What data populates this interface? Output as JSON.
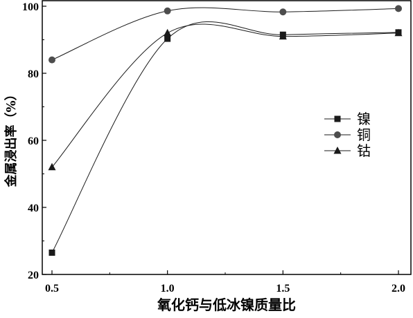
{
  "chart_data": {
    "type": "line",
    "xlabel": "氧化钙与低冰镍质量比",
    "ylabel": "金属浸出率（%）",
    "x": [
      0.5,
      1.0,
      1.5,
      2.0
    ],
    "xticks": [
      "0.5",
      "1.0",
      "1.5",
      "2.0"
    ],
    "yticks": [
      "20",
      "40",
      "60",
      "80",
      "100"
    ],
    "xlim": [
      0.5,
      2.0
    ],
    "ylim": [
      20,
      100
    ],
    "legend_position": "right",
    "series": [
      {
        "name": "镍",
        "marker": "square",
        "color": "#1a1a1a",
        "values": [
          26.5,
          90.3,
          91.5,
          92.2
        ]
      },
      {
        "name": "铜",
        "marker": "circle",
        "color": "#4d4d4d",
        "values": [
          84.0,
          98.6,
          98.3,
          99.3
        ]
      },
      {
        "name": "钴",
        "marker": "triangle",
        "color": "#1a1a1a",
        "values": [
          52.0,
          92.0,
          91.0,
          92.0
        ]
      }
    ]
  }
}
